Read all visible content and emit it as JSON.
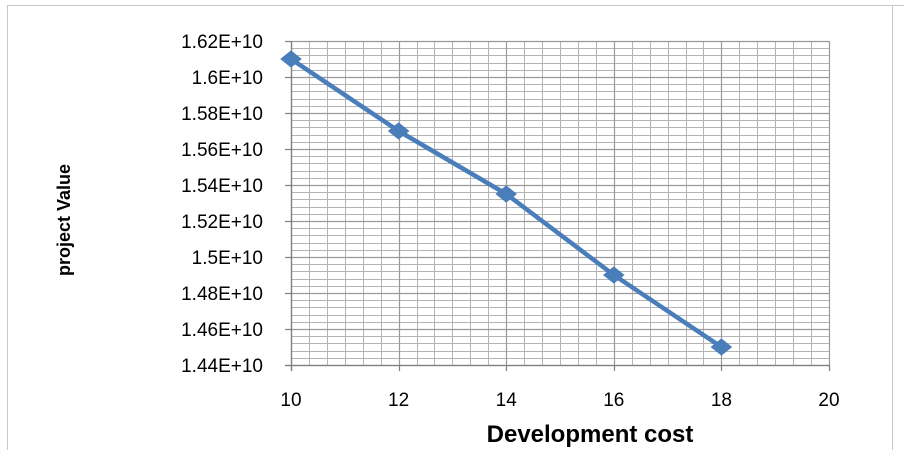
{
  "chart_data": {
    "type": "line",
    "title": "",
    "xlabel": "Development cost",
    "ylabel": "project Value",
    "x": [
      10,
      12,
      14,
      16,
      18
    ],
    "series": [
      {
        "values": [
          16100000000,
          15700000000,
          15350000000,
          14900000000,
          14500000000
        ]
      }
    ],
    "xlim": [
      10,
      20
    ],
    "ylim": [
      14400000000,
      16200000000
    ],
    "x_ticks": [
      10,
      12,
      14,
      16,
      18,
      20
    ],
    "x_tick_labels": [
      "10",
      "12",
      "14",
      "16",
      "18",
      "20"
    ],
    "y_ticks": [
      14400000000,
      14600000000,
      14800000000,
      15000000000,
      15200000000,
      15400000000,
      15600000000,
      15800000000,
      16000000000,
      16200000000
    ],
    "y_tick_labels": [
      "1.44E+10",
      "1.46E+10",
      "1.48E+10",
      "1.5E+10",
      "1.52E+10",
      "1.54E+10",
      "1.56E+10",
      "1.58E+10",
      "1.6E+10",
      "1.62E+10"
    ],
    "grid": true,
    "legend": "none",
    "colors": {
      "line": "#4a7ebb",
      "marker": "#4a7ebb",
      "grid": "#9a9a9a",
      "axis": "#808080"
    },
    "marker": "diamond"
  }
}
